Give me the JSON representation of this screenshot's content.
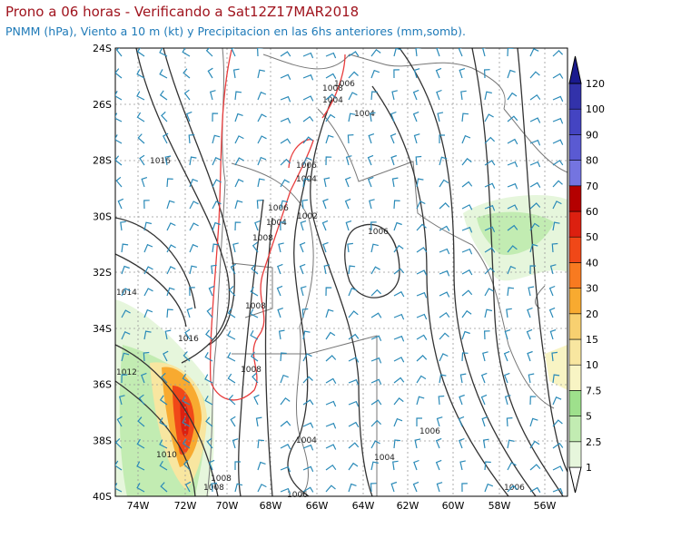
{
  "header": {
    "title": "Prono a 06 horas - Verificando a Sat12Z17MAR2018",
    "subtitle": "PNMM (hPa), Viento a 10 m (kt) y Precipitacion en las 6hs anteriores (mm,somb)."
  },
  "map": {
    "lat_labels": [
      "24S",
      "26S",
      "28S",
      "30S",
      "32S",
      "34S",
      "36S",
      "38S",
      "40S"
    ],
    "lon_labels": [
      "74W",
      "72W",
      "70W",
      "68W",
      "66W",
      "64W",
      "62W",
      "60W",
      "58W",
      "56W"
    ],
    "contour_labels": [
      "1016",
      "1014",
      "1012",
      "1010",
      "1016",
      "1008",
      "1006",
      "1004",
      "1008",
      "1006",
      "1004",
      "1002",
      "1008",
      "1004",
      "1006",
      "1004",
      "1006",
      "1008",
      "1008",
      "1004",
      "1006",
      "1006",
      "1004",
      "1006",
      "1008"
    ]
  },
  "colorbar": {
    "levels": [
      1,
      2.5,
      5,
      7.5,
      10,
      15,
      20,
      30,
      40,
      50,
      60,
      70,
      80,
      90,
      100,
      120
    ],
    "colors": [
      "#ffffff",
      "#e6f6dc",
      "#c2ecb2",
      "#9ee08c",
      "#f8f4c4",
      "#f8e6a0",
      "#f8d070",
      "#f8aa30",
      "#f87a20",
      "#f04818",
      "#dc2010",
      "#b40000",
      "#7474e0",
      "#5a5ad2",
      "#4444c2",
      "#3232aa",
      "#1a1a8e"
    ]
  }
}
